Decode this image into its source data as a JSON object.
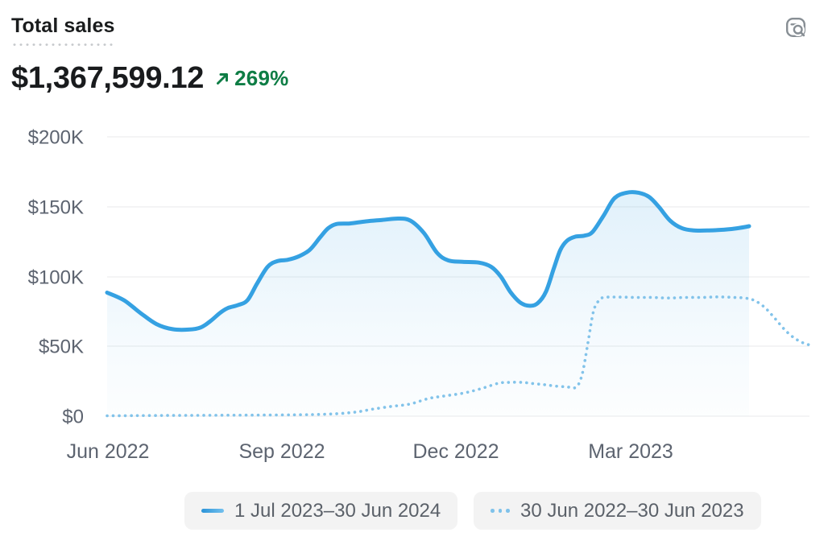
{
  "header": {
    "title": "Total sales",
    "value": "$1,367,599.12",
    "change": {
      "direction": "up",
      "percent": "269%"
    }
  },
  "legend": {
    "items": [
      {
        "label": "1 Jul 2023–30 Jun 2024",
        "style": "solid",
        "color": "#35a1e2"
      },
      {
        "label": "30 Jun 2022–30 Jun 2023",
        "style": "dotted",
        "color": "#82c3ea"
      }
    ]
  },
  "colors": {
    "current_line": "#35a1e2",
    "previous_line": "#82c3ea",
    "change_green": "#0e7d45",
    "grid": "#e9eaeb",
    "axis_text": "#5d6470",
    "legend_chip_bg": "#f3f3f3"
  },
  "chart_data": {
    "type": "line",
    "title": "Total sales",
    "xlabel": "",
    "ylabel": "",
    "grid": true,
    "legend_position": "bottom",
    "ylim_k": [
      0,
      200
    ],
    "x_axis_span_weeks": 52.41,
    "yticks": [
      {
        "label": "$200K",
        "value_k": 200
      },
      {
        "label": "$150K",
        "value_k": 150
      },
      {
        "label": "$100K",
        "value_k": 100
      },
      {
        "label": "$50K",
        "value_k": 50
      },
      {
        "label": "$0",
        "value_k": 0
      }
    ],
    "xticks": [
      {
        "label": "Jun 2022",
        "week": 0
      },
      {
        "label": "Sep 2022",
        "week": 13
      },
      {
        "label": "Dec 2022",
        "week": 26
      },
      {
        "label": "Mar 2023",
        "week": 39.06
      }
    ],
    "series": [
      {
        "name": "1 Jul 2023–30 Jun 2024",
        "style": "solid",
        "color": "#35a1e2",
        "area": true,
        "points_week_valueK": [
          [
            0,
            88.5
          ],
          [
            1.26,
            83
          ],
          [
            2.47,
            74
          ],
          [
            3.67,
            66
          ],
          [
            4.88,
            62.3
          ],
          [
            6.08,
            62
          ],
          [
            6.98,
            63.5
          ],
          [
            7.7,
            68
          ],
          [
            8.43,
            74
          ],
          [
            9.03,
            77.5
          ],
          [
            9.75,
            79.5
          ],
          [
            10.47,
            83
          ],
          [
            11.19,
            95
          ],
          [
            11.98,
            107
          ],
          [
            12.7,
            111
          ],
          [
            13.48,
            112
          ],
          [
            14.32,
            114.5
          ],
          [
            15.11,
            119
          ],
          [
            15.89,
            128
          ],
          [
            16.49,
            134.5
          ],
          [
            17.09,
            137.5
          ],
          [
            18.11,
            138
          ],
          [
            19.32,
            139.5
          ],
          [
            20.52,
            140.5
          ],
          [
            21.72,
            141.5
          ],
          [
            22.63,
            140
          ],
          [
            23.65,
            131
          ],
          [
            24.62,
            117
          ],
          [
            25.46,
            111.5
          ],
          [
            26.54,
            110.5
          ],
          [
            27.74,
            110
          ],
          [
            28.65,
            107
          ],
          [
            29.37,
            100
          ],
          [
            30.09,
            89
          ],
          [
            30.81,
            81.5
          ],
          [
            31.54,
            79
          ],
          [
            32.14,
            81
          ],
          [
            32.74,
            89
          ],
          [
            33.34,
            106
          ],
          [
            33.82,
            119
          ],
          [
            34.3,
            125.5
          ],
          [
            34.91,
            128.5
          ],
          [
            35.63,
            129.3
          ],
          [
            36.23,
            132
          ],
          [
            37.07,
            144
          ],
          [
            37.85,
            156
          ],
          [
            38.76,
            160
          ],
          [
            39.66,
            160
          ],
          [
            40.44,
            157
          ],
          [
            41.16,
            150
          ],
          [
            42.01,
            140
          ],
          [
            42.91,
            134.5
          ],
          [
            43.81,
            133
          ],
          [
            44.9,
            133
          ],
          [
            45.98,
            133.5
          ],
          [
            47,
            134.5
          ],
          [
            47.9,
            136
          ]
        ]
      },
      {
        "name": "30 Jun 2022–30 Jun 2023",
        "style": "dotted",
        "color": "#82c3ea",
        "area": false,
        "points_week_valueK": [
          [
            0,
            0.3
          ],
          [
            2.2,
            0.4
          ],
          [
            4.6,
            0.5
          ],
          [
            7,
            0.6
          ],
          [
            9.4,
            0.7
          ],
          [
            11.8,
            0.8
          ],
          [
            14.2,
            1
          ],
          [
            15.6,
            1.2
          ],
          [
            17.2,
            1.8
          ],
          [
            18.6,
            3
          ],
          [
            19.8,
            5
          ],
          [
            21.2,
            7
          ],
          [
            22.6,
            8.7
          ],
          [
            24,
            12.7
          ],
          [
            25.2,
            14.5
          ],
          [
            26.7,
            16.7
          ],
          [
            28,
            20
          ],
          [
            29.2,
            23.6
          ],
          [
            30,
            24.2
          ],
          [
            31,
            24.2
          ],
          [
            31.9,
            23.2
          ],
          [
            32.7,
            22.5
          ],
          [
            33.5,
            21.5
          ],
          [
            34.3,
            21
          ],
          [
            35,
            20.8
          ],
          [
            35.45,
            30
          ],
          [
            35.87,
            52
          ],
          [
            36.29,
            75
          ],
          [
            36.71,
            83
          ],
          [
            37.07,
            85
          ],
          [
            38,
            85.3
          ],
          [
            39.5,
            85
          ],
          [
            40.7,
            85
          ],
          [
            41.9,
            84.6
          ],
          [
            43.2,
            85
          ],
          [
            44.4,
            85
          ],
          [
            45.6,
            85.4
          ],
          [
            46.8,
            85
          ],
          [
            47.66,
            84.5
          ],
          [
            48.38,
            82.5
          ],
          [
            49.11,
            77.5
          ],
          [
            49.83,
            70
          ],
          [
            50.55,
            62
          ],
          [
            51.27,
            56
          ],
          [
            51.93,
            52.5
          ],
          [
            52.41,
            51
          ]
        ]
      }
    ]
  }
}
